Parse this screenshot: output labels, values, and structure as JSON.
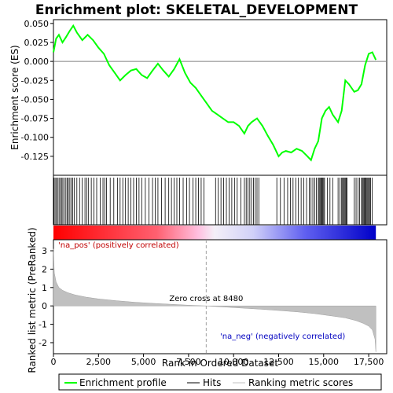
{
  "chart_data": {
    "type": "line",
    "title": "Enrichment plot: SKELETAL_DEVELOPMENT",
    "xlabel": "Rank in Ordered Dataset",
    "ylabel_top": "Enrichment score (ES)",
    "ylabel_bottom": "Ranked list metric (PreRanked)",
    "xlim": [
      0,
      18500
    ],
    "es_ylim": [
      -0.15,
      0.055
    ],
    "metric_ylim": [
      -2.6,
      3.6
    ],
    "x_ticks": [
      0,
      2500,
      5000,
      7500,
      10000,
      12500,
      15000,
      17500
    ],
    "x_tick_labels": [
      "0",
      "2,500",
      "5,000",
      "7,500",
      "10,000",
      "12,500",
      "15,000",
      "17,500"
    ],
    "es_ticks": [
      0.05,
      0.025,
      0.0,
      -0.025,
      -0.05,
      -0.075,
      -0.1,
      -0.125
    ],
    "es_tick_labels": [
      "0.050",
      "0.025",
      "0.000",
      "-0.025",
      "-0.050",
      "-0.075",
      "-0.100",
      "-0.125"
    ],
    "metric_ticks": [
      3,
      2,
      1,
      0,
      -1,
      -2
    ],
    "metric_tick_labels": [
      "3",
      "2",
      "1",
      "0",
      "-1",
      "-2"
    ],
    "zero_cross_rank": 8480,
    "zero_cross_label": "Zero cross at 8480",
    "pos_label": "'na_pos' (positively correlated)",
    "neg_label": "'na_neg' (negatively correlated)",
    "n_genes": 17900,
    "es_profile": {
      "name": "Enrichment profile",
      "x": [
        0,
        150,
        300,
        500,
        700,
        900,
        1100,
        1300,
        1600,
        1900,
        2200,
        2500,
        2800,
        3100,
        3400,
        3700,
        4000,
        4300,
        4600,
        4900,
        5200,
        5500,
        5800,
        6100,
        6400,
        6700,
        7000,
        7300,
        7600,
        7900,
        8200,
        8500,
        8800,
        9100,
        9400,
        9700,
        10000,
        10300,
        10600,
        10800,
        11000,
        11300,
        11600,
        11900,
        12200,
        12500,
        12700,
        12900,
        13200,
        13500,
        13800,
        14100,
        14300,
        14500,
        14700,
        14900,
        15100,
        15300,
        15500,
        15800,
        16000,
        16200,
        16400,
        16700,
        16900,
        17100,
        17300,
        17500,
        17700,
        17900
      ],
      "y": [
        0.012,
        0.03,
        0.035,
        0.025,
        0.032,
        0.04,
        0.047,
        0.038,
        0.028,
        0.035,
        0.028,
        0.018,
        0.01,
        -0.005,
        -0.015,
        -0.025,
        -0.018,
        -0.012,
        -0.01,
        -0.018,
        -0.022,
        -0.012,
        -0.003,
        -0.012,
        -0.02,
        -0.01,
        0.003,
        -0.015,
        -0.028,
        -0.035,
        -0.045,
        -0.055,
        -0.065,
        -0.07,
        -0.075,
        -0.08,
        -0.08,
        -0.085,
        -0.095,
        -0.085,
        -0.08,
        -0.075,
        -0.085,
        -0.098,
        -0.11,
        -0.125,
        -0.12,
        -0.118,
        -0.12,
        -0.115,
        -0.118,
        -0.125,
        -0.13,
        -0.115,
        -0.105,
        -0.075,
        -0.065,
        -0.06,
        -0.07,
        -0.08,
        -0.065,
        -0.025,
        -0.03,
        -0.04,
        -0.038,
        -0.03,
        -0.005,
        0.01,
        0.012,
        0.002
      ]
    },
    "hits": [
      30,
      90,
      160,
      230,
      310,
      380,
      450,
      520,
      600,
      690,
      760,
      830,
      910,
      990,
      1070,
      1150,
      1300,
      1450,
      1600,
      1750,
      1850,
      1950,
      2100,
      2250,
      2400,
      2600,
      2750,
      2850,
      2950,
      3150,
      3350,
      3550,
      3700,
      3850,
      4000,
      4150,
      4300,
      4450,
      4600,
      4750,
      4900,
      5100,
      5300,
      5500,
      5650,
      5800,
      6000,
      6200,
      6400,
      6550,
      6700,
      6850,
      7000,
      7200,
      7400,
      7550,
      7750,
      7900,
      8050,
      8200,
      8350,
      9000,
      9150,
      9300,
      9450,
      9600,
      9750,
      9900,
      10050,
      10200,
      10400,
      10600,
      10700,
      10800,
      10900,
      11000,
      11100,
      11200,
      11300,
      11400,
      12400,
      12600,
      12800,
      13000,
      13150,
      13300,
      13450,
      13600,
      13750,
      13900,
      14050,
      14200,
      14300,
      14400,
      14500,
      14600,
      14700,
      14750,
      14800,
      14850,
      14900,
      14950,
      15000,
      15050,
      15200,
      15350,
      15500,
      15800,
      15900,
      16000,
      16050,
      16100,
      16150,
      16200,
      16250,
      16300,
      16700,
      16800,
      16900,
      17000,
      17100,
      17150,
      17200,
      17250,
      17300,
      17350,
      17400,
      17450,
      17500,
      17550,
      17600,
      17700
    ],
    "metric_points": {
      "x": [
        0,
        50,
        150,
        300,
        500,
        800,
        1200,
        1800,
        2500,
        3500,
        4500,
        5500,
        6500,
        7500,
        8480,
        9500,
        10500,
        11500,
        12500,
        13500,
        14500,
        15500,
        16200,
        16800,
        17200,
        17500,
        17700,
        17850,
        17900
      ],
      "y": [
        3.1,
        1.8,
        1.3,
        1.0,
        0.85,
        0.72,
        0.6,
        0.48,
        0.38,
        0.28,
        0.2,
        0.14,
        0.09,
        0.04,
        0.0,
        -0.06,
        -0.12,
        -0.18,
        -0.25,
        -0.32,
        -0.42,
        -0.55,
        -0.65,
        -0.8,
        -0.95,
        -1.1,
        -1.3,
        -1.8,
        -2.5
      ]
    },
    "legend": [
      "Enrichment profile",
      "Hits",
      "Ranking metric scores"
    ]
  }
}
